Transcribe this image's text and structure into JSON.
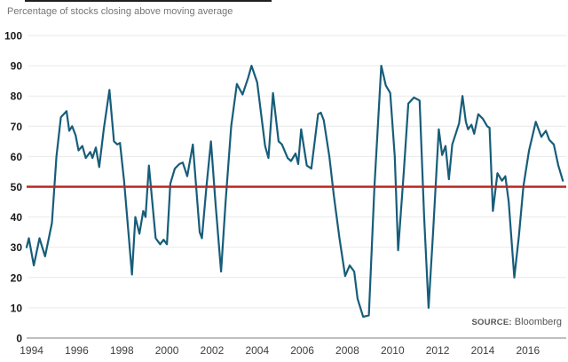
{
  "chart": {
    "title": "Percentage of stocks closing above moving average",
    "source_label": "SOURCE:",
    "source_value": "Bloomberg"
  },
  "chart_data": {
    "type": "line",
    "title": "Percentage of stocks closing above moving average",
    "xlabel": "",
    "ylabel": "",
    "xlim": [
      1993.78,
      2017.7
    ],
    "ylim": [
      0,
      100
    ],
    "x_ticks": [
      1994,
      1996,
      1998,
      2000,
      2002,
      2004,
      2006,
      2008,
      2010,
      2012,
      2014,
      2016
    ],
    "y_ticks": [
      0,
      10,
      20,
      30,
      40,
      50,
      60,
      70,
      80,
      90,
      100
    ],
    "grid": "horizontal",
    "grid_color": "#e9e9e9",
    "axis_color": "#aaaaaa",
    "legend": "none",
    "source": "Bloomberg",
    "threshold_line": {
      "value": 50,
      "color": "#b42823"
    },
    "series": [
      {
        "name": "stocks-above-moving-average",
        "color": "#175d7a",
        "points": [
          [
            1993.78,
            30
          ],
          [
            1993.88,
            33
          ],
          [
            1994.1,
            24
          ],
          [
            1994.35,
            33
          ],
          [
            1994.6,
            27
          ],
          [
            1994.9,
            38
          ],
          [
            1995.1,
            60
          ],
          [
            1995.3,
            73
          ],
          [
            1995.55,
            75
          ],
          [
            1995.67,
            68.5
          ],
          [
            1995.8,
            70
          ],
          [
            1995.95,
            67
          ],
          [
            1996.08,
            62
          ],
          [
            1996.25,
            63.5
          ],
          [
            1996.4,
            59.5
          ],
          [
            1996.6,
            61.5
          ],
          [
            1996.7,
            59.5
          ],
          [
            1996.85,
            63
          ],
          [
            1997.0,
            56.5
          ],
          [
            1997.2,
            69
          ],
          [
            1997.45,
            82
          ],
          [
            1997.65,
            65
          ],
          [
            1997.8,
            64
          ],
          [
            1997.92,
            64.5
          ],
          [
            1998.1,
            52
          ],
          [
            1998.45,
            21
          ],
          [
            1998.6,
            40
          ],
          [
            1998.78,
            34.5
          ],
          [
            1998.95,
            42
          ],
          [
            1999.05,
            40
          ],
          [
            1999.2,
            57
          ],
          [
            1999.5,
            33
          ],
          [
            1999.7,
            31
          ],
          [
            1999.85,
            32.5
          ],
          [
            2000.0,
            31
          ],
          [
            2000.15,
            51
          ],
          [
            2000.35,
            56
          ],
          [
            2000.55,
            57.5
          ],
          [
            2000.7,
            58
          ],
          [
            2000.9,
            53.5
          ],
          [
            2001.15,
            64
          ],
          [
            2001.45,
            35
          ],
          [
            2001.55,
            33
          ],
          [
            2001.75,
            50
          ],
          [
            2001.95,
            65
          ],
          [
            2002.15,
            45
          ],
          [
            2002.4,
            22
          ],
          [
            2002.6,
            45
          ],
          [
            2002.85,
            70
          ],
          [
            2003.1,
            84
          ],
          [
            2003.35,
            80.5
          ],
          [
            2003.6,
            86
          ],
          [
            2003.75,
            90
          ],
          [
            2004.0,
            84.5
          ],
          [
            2004.35,
            63.5
          ],
          [
            2004.5,
            59.5
          ],
          [
            2004.7,
            81
          ],
          [
            2004.95,
            65
          ],
          [
            2005.1,
            64
          ],
          [
            2005.35,
            59.5
          ],
          [
            2005.5,
            58.5
          ],
          [
            2005.7,
            61
          ],
          [
            2005.82,
            57.5
          ],
          [
            2005.95,
            69
          ],
          [
            2006.2,
            57
          ],
          [
            2006.4,
            56
          ],
          [
            2006.7,
            74
          ],
          [
            2006.82,
            74.5
          ],
          [
            2006.95,
            72
          ],
          [
            2007.2,
            60
          ],
          [
            2007.4,
            47
          ],
          [
            2007.65,
            33
          ],
          [
            2007.9,
            20.5
          ],
          [
            2008.1,
            24
          ],
          [
            2008.3,
            22
          ],
          [
            2008.45,
            13
          ],
          [
            2008.7,
            7
          ],
          [
            2008.95,
            7.5
          ],
          [
            2009.2,
            50
          ],
          [
            2009.5,
            90
          ],
          [
            2009.7,
            83.5
          ],
          [
            2009.9,
            81
          ],
          [
            2010.1,
            60
          ],
          [
            2010.25,
            29
          ],
          [
            2010.5,
            55
          ],
          [
            2010.7,
            77.5
          ],
          [
            2010.95,
            79.5
          ],
          [
            2011.2,
            78.5
          ],
          [
            2011.4,
            40
          ],
          [
            2011.6,
            10
          ],
          [
            2011.8,
            35
          ],
          [
            2012.05,
            69
          ],
          [
            2012.2,
            60.5
          ],
          [
            2012.35,
            63.5
          ],
          [
            2012.5,
            52.5
          ],
          [
            2012.65,
            64
          ],
          [
            2012.8,
            67.5
          ],
          [
            2012.95,
            71
          ],
          [
            2013.1,
            80
          ],
          [
            2013.25,
            71.5
          ],
          [
            2013.35,
            69
          ],
          [
            2013.5,
            70.5
          ],
          [
            2013.62,
            67.5
          ],
          [
            2013.8,
            74
          ],
          [
            2014.0,
            72.5
          ],
          [
            2014.2,
            70
          ],
          [
            2014.3,
            69.5
          ],
          [
            2014.45,
            42
          ],
          [
            2014.65,
            54.5
          ],
          [
            2014.85,
            52
          ],
          [
            2015.0,
            53.5
          ],
          [
            2015.15,
            45
          ],
          [
            2015.4,
            20
          ],
          [
            2015.6,
            33.5
          ],
          [
            2015.8,
            50
          ],
          [
            2016.05,
            62
          ],
          [
            2016.35,
            71.5
          ],
          [
            2016.6,
            66.5
          ],
          [
            2016.8,
            68.5
          ],
          [
            2016.95,
            65.5
          ],
          [
            2017.15,
            64
          ],
          [
            2017.35,
            57
          ],
          [
            2017.55,
            52
          ]
        ]
      }
    ]
  }
}
